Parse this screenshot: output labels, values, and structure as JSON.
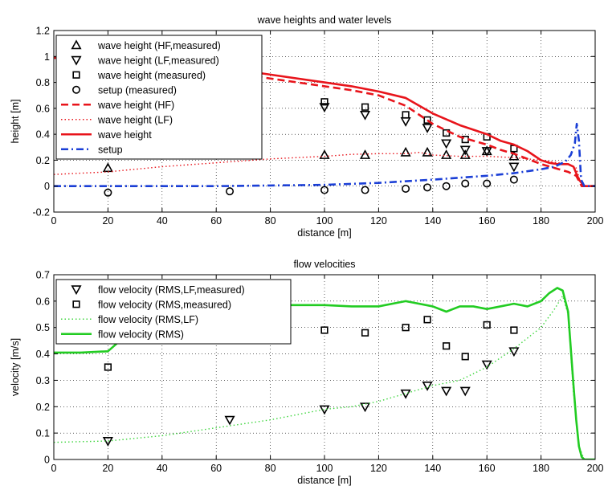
{
  "chart_data": [
    {
      "type": "line",
      "title": "wave heights and water levels",
      "xlabel": "distance [m]",
      "ylabel": "height [m]",
      "xlim": [
        0,
        200
      ],
      "ylim": [
        -0.2,
        1.2
      ],
      "xticks": [
        0,
        20,
        40,
        60,
        80,
        100,
        120,
        140,
        160,
        180,
        200
      ],
      "yticks": [
        -0.2,
        0,
        0.2,
        0.4,
        0.6,
        0.8,
        1,
        1.2
      ],
      "grid": true,
      "legend_position": "top-left",
      "series": [
        {
          "name": "wave height (HF,measured)",
          "kind": "markers",
          "marker": "triangle-up",
          "color": "#000000",
          "x": [
            20,
            100,
            115,
            130,
            138,
            145,
            152,
            160,
            170
          ],
          "y": [
            0.14,
            0.24,
            0.24,
            0.26,
            0.26,
            0.24,
            0.24,
            0.27,
            0.23
          ]
        },
        {
          "name": "wave height (LF,measured)",
          "kind": "markers",
          "marker": "triangle-down",
          "color": "#000000",
          "x": [
            100,
            115,
            130,
            138,
            145,
            152,
            160,
            170
          ],
          "y": [
            0.61,
            0.55,
            0.5,
            0.45,
            0.33,
            0.28,
            0.27,
            0.15
          ]
        },
        {
          "name": "wave height (measured)",
          "kind": "markers",
          "marker": "square",
          "color": "#000000",
          "x": [
            100,
            115,
            130,
            138,
            145,
            152,
            160,
            170
          ],
          "y": [
            0.65,
            0.61,
            0.55,
            0.51,
            0.41,
            0.36,
            0.38,
            0.29
          ]
        },
        {
          "name": "setup (measured)",
          "kind": "markers",
          "marker": "circle",
          "color": "#000000",
          "x": [
            20,
            65,
            100,
            115,
            130,
            138,
            145,
            152,
            160,
            170
          ],
          "y": [
            -0.05,
            -0.04,
            -0.03,
            -0.03,
            -0.02,
            -0.01,
            0.0,
            0.02,
            0.02,
            0.05
          ]
        },
        {
          "name": "wave height (HF)",
          "kind": "line",
          "dash": "dashed",
          "color": "#e8141b",
          "x": [
            0,
            10,
            20,
            40,
            60,
            80,
            100,
            110,
            120,
            130,
            140,
            150,
            160,
            165,
            170,
            175,
            180,
            185,
            190,
            193,
            195,
            200
          ],
          "y": [
            0.99,
            0.985,
            0.975,
            0.94,
            0.89,
            0.83,
            0.77,
            0.74,
            0.7,
            0.62,
            0.48,
            0.38,
            0.32,
            0.28,
            0.25,
            0.21,
            0.17,
            0.14,
            0.11,
            0.08,
            0.0,
            0.0
          ]
        },
        {
          "name": "wave height (LF)",
          "kind": "line",
          "dash": "dotted",
          "color": "#e8141b",
          "x": [
            0,
            20,
            40,
            60,
            80,
            100,
            110,
            120,
            130,
            135,
            140,
            150,
            160,
            170,
            180,
            190,
            193,
            195,
            200
          ],
          "y": [
            0.09,
            0.11,
            0.15,
            0.18,
            0.21,
            0.23,
            0.245,
            0.25,
            0.25,
            0.26,
            0.24,
            0.23,
            0.23,
            0.22,
            0.2,
            0.17,
            0.14,
            0.0,
            0.0
          ]
        },
        {
          "name": "wave height",
          "kind": "line",
          "dash": "solid",
          "color": "#e8141b",
          "x": [
            0,
            20,
            40,
            60,
            80,
            100,
            110,
            120,
            130,
            140,
            150,
            160,
            165,
            170,
            175,
            180,
            183,
            186,
            188,
            190,
            192,
            194,
            196,
            200
          ],
          "y": [
            0.99,
            0.99,
            0.96,
            0.92,
            0.86,
            0.8,
            0.77,
            0.73,
            0.68,
            0.56,
            0.47,
            0.4,
            0.35,
            0.32,
            0.27,
            0.2,
            0.18,
            0.17,
            0.17,
            0.17,
            0.15,
            0.05,
            0.0,
            0.0
          ]
        },
        {
          "name": "setup",
          "kind": "line",
          "dash": "dashdot",
          "color": "#1b3fd6",
          "x": [
            0,
            20,
            40,
            60,
            80,
            100,
            120,
            140,
            160,
            170,
            180,
            185,
            189,
            191,
            192.5,
            193.2,
            194,
            194.8,
            196,
            200
          ],
          "y": [
            0.0,
            0.0,
            0.0,
            0.0,
            0.005,
            0.01,
            0.025,
            0.05,
            0.08,
            0.1,
            0.13,
            0.15,
            0.19,
            0.24,
            0.33,
            0.48,
            0.35,
            0.05,
            0.0,
            0.0
          ]
        }
      ]
    },
    {
      "type": "line",
      "title": "flow velocities",
      "xlabel": "distance [m]",
      "ylabel": "velocity [m/s]",
      "xlim": [
        0,
        200
      ],
      "ylim": [
        0,
        0.7
      ],
      "xticks": [
        0,
        20,
        40,
        60,
        80,
        100,
        120,
        140,
        160,
        180,
        200
      ],
      "yticks": [
        0,
        0.1,
        0.2,
        0.3,
        0.4,
        0.5,
        0.6,
        0.7
      ],
      "grid": true,
      "legend_position": "top-left",
      "series": [
        {
          "name": "flow velocity (RMS,LF,measured)",
          "kind": "markers",
          "marker": "triangle-down",
          "color": "#000000",
          "x": [
            20,
            65,
            100,
            115,
            130,
            138,
            145,
            152,
            160,
            170
          ],
          "y": [
            0.07,
            0.15,
            0.19,
            0.2,
            0.25,
            0.28,
            0.26,
            0.26,
            0.36,
            0.41
          ]
        },
        {
          "name": "flow velocity (RMS,measured)",
          "kind": "markers",
          "marker": "square",
          "color": "#000000",
          "x": [
            20,
            100,
            115,
            130,
            138,
            145,
            152,
            160,
            170
          ],
          "y": [
            0.35,
            0.49,
            0.48,
            0.5,
            0.53,
            0.43,
            0.39,
            0.51,
            0.49
          ]
        },
        {
          "name": "flow velocity (RMS,LF)",
          "kind": "line",
          "dash": "dotted",
          "color": "#3fd63f",
          "x": [
            0,
            20,
            40,
            60,
            80,
            100,
            110,
            120,
            130,
            140,
            150,
            160,
            170,
            180,
            185,
            188,
            190,
            192,
            194,
            196,
            200
          ],
          "y": [
            0.065,
            0.07,
            0.09,
            0.12,
            0.15,
            0.19,
            0.2,
            0.22,
            0.25,
            0.28,
            0.3,
            0.35,
            0.42,
            0.5,
            0.57,
            0.62,
            0.55,
            0.25,
            0.05,
            0.0,
            0.0
          ]
        },
        {
          "name": "flow velocity (RMS)",
          "kind": "line",
          "dash": "solid",
          "color": "#22cc22",
          "x": [
            0,
            10,
            20,
            30,
            40,
            50,
            60,
            70,
            80,
            90,
            100,
            110,
            120,
            130,
            140,
            145,
            150,
            155,
            160,
            165,
            170,
            175,
            180,
            183,
            186,
            188,
            190,
            191,
            192,
            193,
            194,
            195,
            196,
            200
          ],
          "y": [
            0.405,
            0.405,
            0.41,
            0.5,
            0.56,
            0.57,
            0.575,
            0.58,
            0.585,
            0.585,
            0.585,
            0.58,
            0.58,
            0.6,
            0.58,
            0.56,
            0.58,
            0.58,
            0.57,
            0.58,
            0.59,
            0.58,
            0.6,
            0.63,
            0.65,
            0.64,
            0.56,
            0.42,
            0.28,
            0.15,
            0.05,
            0.01,
            0.0,
            0.0
          ]
        }
      ]
    }
  ]
}
